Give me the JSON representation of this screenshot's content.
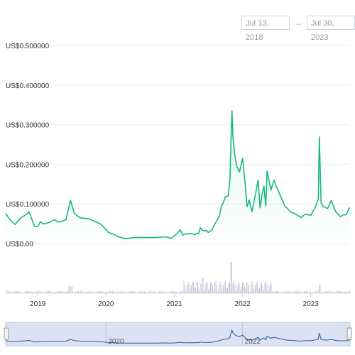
{
  "date_range": {
    "from": "Jul 13, 2018",
    "arrow": "→",
    "to": "Jul 30, 2023"
  },
  "colors": {
    "line": "#16b979",
    "area_top": "#16b979",
    "grid": "#e9ecef",
    "volume": "#c3c9d4",
    "navigator_fill": "#dbe3f3",
    "navigator_line": "#2f55a4"
  },
  "chart_data": {
    "type": "area",
    "title": "",
    "xlabel": "",
    "ylabel": "",
    "x_ticks": [
      "2019",
      "2020",
      "2021",
      "2022",
      "2023"
    ],
    "y_ticks": [
      "US$0.00",
      "US$0.100000",
      "US$0.200000",
      "US$0.300000",
      "US$0.400000",
      "US$0.500000"
    ],
    "ylim": [
      0,
      0.5
    ],
    "xlim": [
      "2018-07-13",
      "2023-07-30"
    ],
    "grid": true,
    "series": [
      {
        "x": [
          "2018-07-13",
          "2018-08-01",
          "2018-09-01",
          "2018-10-01",
          "2018-11-01",
          "2018-11-15",
          "2018-12-01",
          "2018-12-15",
          "2019-01-01",
          "2019-01-15",
          "2019-02-01",
          "2019-03-01",
          "2019-04-01",
          "2019-04-15",
          "2019-05-01",
          "2019-06-01",
          "2019-06-25",
          "2019-07-15",
          "2019-08-15",
          "2019-10-01",
          "2019-12-01",
          "2020-01-15",
          "2020-02-15",
          "2020-03-01",
          "2020-03-15",
          "2020-04-15",
          "2020-06-01",
          "2020-08-01",
          "2020-10-01",
          "2020-11-15",
          "2020-12-15",
          "2021-01-15",
          "2021-02-01",
          "2021-02-15",
          "2021-03-01",
          "2021-03-15",
          "2021-04-01",
          "2021-04-10",
          "2021-04-16",
          "2021-04-20",
          "2021-05-01",
          "2021-05-10",
          "2021-05-20",
          "2021-06-01",
          "2021-06-15",
          "2021-06-22",
          "2021-07-01",
          "2021-07-20",
          "2021-08-01",
          "2021-08-15",
          "2021-08-30",
          "2021-09-10",
          "2021-09-20",
          "2021-10-01",
          "2021-10-15",
          "2021-10-25",
          "2021-10-28",
          "2021-11-05",
          "2021-11-10",
          "2021-11-20",
          "2021-12-01",
          "2021-12-15",
          "2022-01-01",
          "2022-01-15",
          "2022-01-25",
          "2022-02-05",
          "2022-02-20",
          "2022-03-10",
          "2022-03-25",
          "2022-04-05",
          "2022-04-15",
          "2022-04-25",
          "2022-05-05",
          "2022-05-12",
          "2022-06-01",
          "2022-06-18",
          "2022-07-01",
          "2022-08-15",
          "2022-09-15",
          "2022-10-15",
          "2022-11-10",
          "2022-12-01",
          "2023-01-01",
          "2023-01-25",
          "2023-02-10",
          "2023-02-16",
          "2023-02-25",
          "2023-03-10",
          "2023-04-01",
          "2023-04-20",
          "2023-05-15",
          "2023-06-10",
          "2023-06-20",
          "2023-07-10",
          "2023-07-25",
          "2023-07-30"
        ],
        "y": [
          0.076,
          0.06,
          0.048,
          0.065,
          0.074,
          0.08,
          0.06,
          0.045,
          0.043,
          0.055,
          0.052,
          0.053,
          0.06,
          0.053,
          0.055,
          0.06,
          0.108,
          0.076,
          0.065,
          0.06,
          0.05,
          0.028,
          0.022,
          0.018,
          0.016,
          0.014,
          0.015,
          0.015,
          0.014,
          0.017,
          0.013,
          0.022,
          0.035,
          0.021,
          0.022,
          0.024,
          0.025,
          0.024,
          0.024,
          0.022,
          0.026,
          0.025,
          0.04,
          0.03,
          0.032,
          0.033,
          0.03,
          0.034,
          0.045,
          0.06,
          0.07,
          0.095,
          0.104,
          0.118,
          0.12,
          0.155,
          0.215,
          0.335,
          0.275,
          0.225,
          0.195,
          0.18,
          0.215,
          0.15,
          0.09,
          0.11,
          0.08,
          0.12,
          0.16,
          0.09,
          0.125,
          0.145,
          0.095,
          0.185,
          0.135,
          0.16,
          0.145,
          0.095,
          0.08,
          0.072,
          0.065,
          0.074,
          0.074,
          0.092,
          0.112,
          0.272,
          0.103,
          0.093,
          0.09,
          0.108,
          0.08,
          0.069,
          0.072,
          0.073,
          0.092,
          0.09
        ]
      }
    ]
  }
}
